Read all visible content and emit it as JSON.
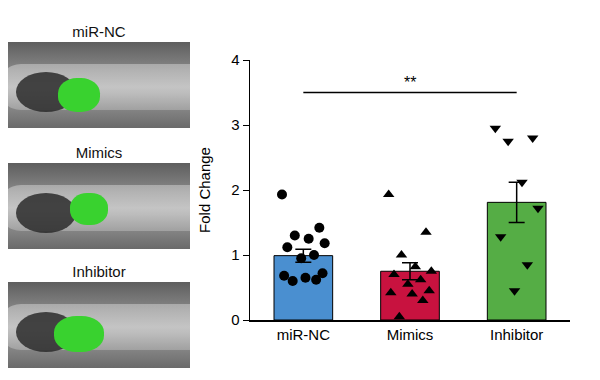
{
  "panels": [
    "miR-NC",
    "Mimics",
    "Inhibitor"
  ],
  "chart_data": {
    "type": "bar",
    "categories": [
      "miR-NC",
      "Mimics",
      "Inhibitor"
    ],
    "values": [
      0.99,
      0.75,
      1.81
    ],
    "error": [
      0.1,
      0.13,
      0.31
    ],
    "colors": [
      "#4a8fd0",
      "#c8123f",
      "#55ad45"
    ],
    "ylabel": "Fold Change",
    "ylim": [
      0,
      4
    ],
    "yticks": [
      0,
      1,
      2,
      3,
      4
    ],
    "points": [
      {
        "category": "miR-NC",
        "marker": "circle",
        "values": [
          1.93,
          1.42,
          1.3,
          1.25,
          1.18,
          1.12,
          1.0,
          0.95,
          0.72,
          0.68,
          0.65,
          0.62,
          0.6
        ]
      },
      {
        "category": "Mimics",
        "marker": "triangle-up",
        "values": [
          1.93,
          1.35,
          1.0,
          0.82,
          0.75,
          0.7,
          0.62,
          0.55,
          0.45,
          0.42,
          0.4,
          0.3,
          0.05
        ]
      },
      {
        "category": "Inhibitor",
        "marker": "triangle-down",
        "values": [
          2.95,
          2.8,
          2.75,
          2.12,
          1.72,
          1.28,
          0.85,
          0.45
        ]
      }
    ],
    "annotations": [
      {
        "text": "**",
        "from": "miR-NC",
        "to": "Inhibitor",
        "y": 3.5
      }
    ]
  }
}
